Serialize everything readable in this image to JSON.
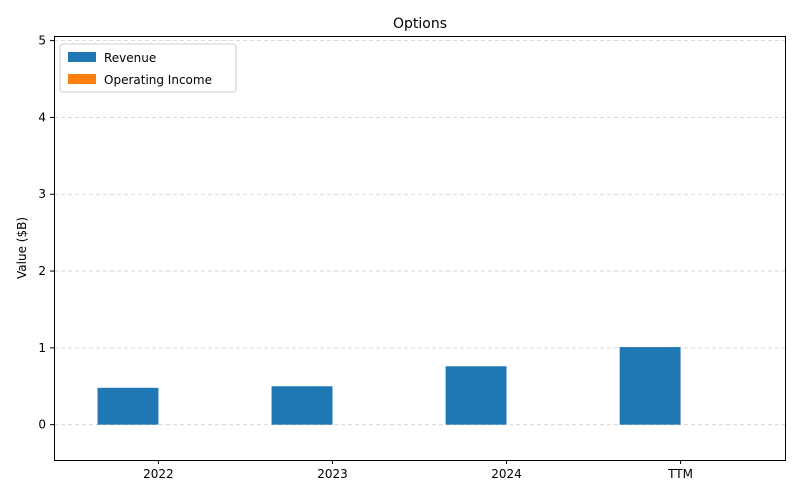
{
  "chart_data": {
    "type": "bar",
    "title": "Options",
    "xlabel": "",
    "ylabel": "Value ($B)",
    "categories": [
      "2022",
      "2023",
      "2024",
      "TTM"
    ],
    "series": [
      {
        "name": "Revenue",
        "values": [
          0.48,
          0.5,
          0.76,
          1.01
        ],
        "color": "#1f77b4"
      },
      {
        "name": "Operating Income",
        "values": [
          0,
          0,
          0,
          0
        ],
        "color": "#ff7f0e"
      }
    ],
    "ylim": [
      -0.46,
      5.06
    ],
    "yticks": [
      0,
      1,
      2,
      3,
      4,
      5
    ],
    "grid": "y-dashed",
    "legend_position": "top-left"
  }
}
